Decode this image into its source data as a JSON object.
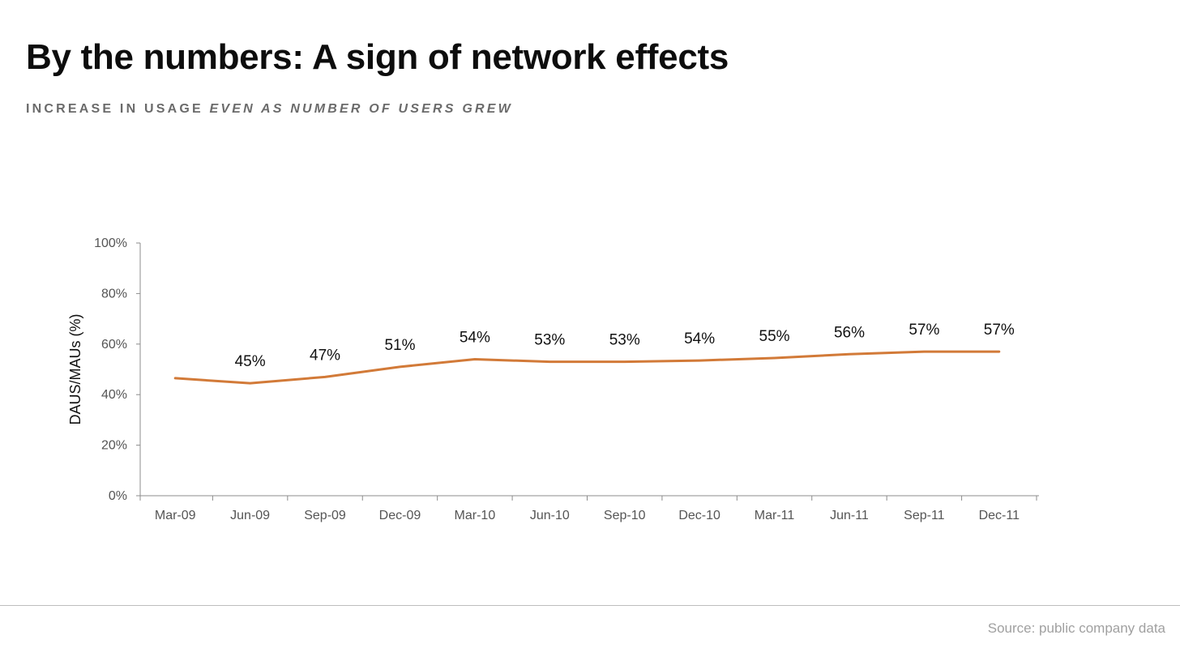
{
  "header": {
    "title": "By the numbers: A sign of network effects",
    "subtitle_prefix": "INCREASE IN USAGE",
    "subtitle_emphasis": "EVEN AS NUMBER OF USERS GREW"
  },
  "footer": {
    "source": "Source: public company data"
  },
  "colors": {
    "line": "#D27A38",
    "axis": "#8c8c8c",
    "tick_label": "#555555",
    "data_label": "#111111"
  },
  "chart_data": {
    "type": "line",
    "title": "",
    "xlabel": "",
    "ylabel": "DAUS/MAUs (%)",
    "categories": [
      "Mar-09",
      "Jun-09",
      "Sep-09",
      "Dec-09",
      "Mar-10",
      "Jun-10",
      "Sep-10",
      "Dec-10",
      "Mar-11",
      "Jun-11",
      "Sep-11",
      "Dec-11"
    ],
    "values": [
      46.5,
      44.5,
      47,
      51,
      54,
      53,
      53,
      53.5,
      54.5,
      56,
      57,
      57
    ],
    "data_labels": [
      null,
      "45%",
      "47%",
      "51%",
      "54%",
      "53%",
      "53%",
      "54%",
      "55%",
      "56%",
      "57%",
      "57%"
    ],
    "ylim": [
      0,
      100
    ],
    "yticks": [
      0,
      20,
      40,
      60,
      80,
      100
    ],
    "ytick_labels": [
      "0%",
      "20%",
      "40%",
      "60%",
      "80%",
      "100%"
    ],
    "grid": false,
    "legend": "none"
  }
}
